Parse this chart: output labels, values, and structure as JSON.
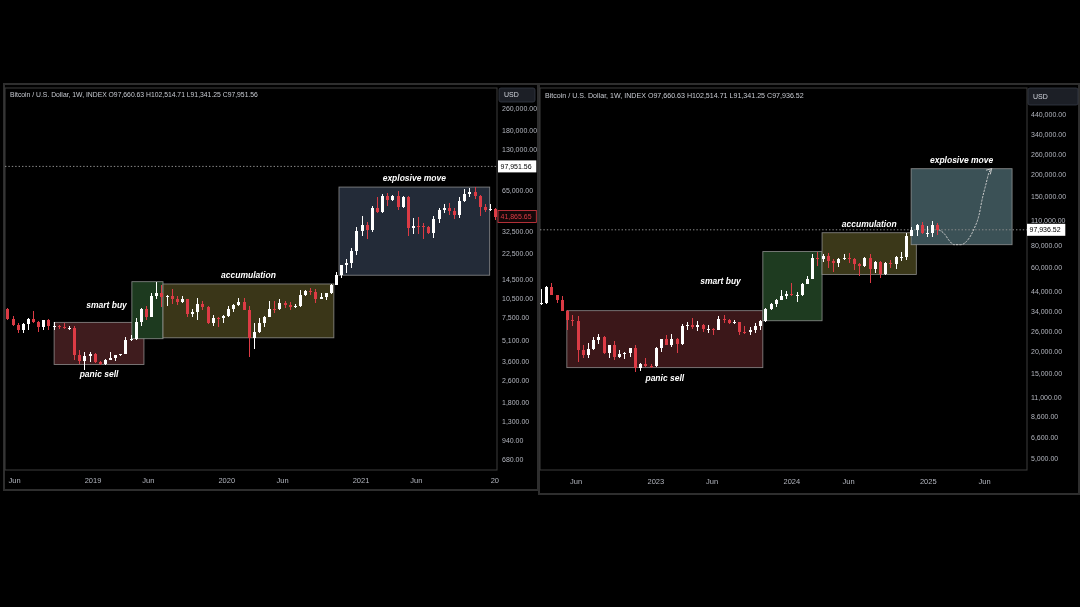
{
  "chart_data": [
    {
      "type": "candlestick",
      "title": "Bitcoin / U.S. Dollar, 1W, INDEX O97,660.63 H102,514.71 L91,341.25 C97,951.56",
      "ylabel": "USD",
      "log": true,
      "xlim": [
        "2018-05-06",
        "2022-01-07"
      ],
      "ylim": [
        570,
        370000
      ],
      "xticks": [
        {
          "value": "2018-06-01",
          "label": "Jun"
        },
        {
          "value": "2019-01-01",
          "label": "2019"
        },
        {
          "value": "2019-06-01",
          "label": "Jun"
        },
        {
          "value": "2020-01-01",
          "label": "2020"
        },
        {
          "value": "2020-06-01",
          "label": "Jun"
        },
        {
          "value": "2021-01-01",
          "label": "2021"
        },
        {
          "value": "2021-06-01",
          "label": "Jun"
        },
        {
          "value": "2022-01-01",
          "label": "20"
        }
      ],
      "yticks": [
        {
          "value": 260000,
          "label": "260,000.00"
        },
        {
          "value": 180000,
          "label": "180,000.00"
        },
        {
          "value": 130000,
          "label": "130,000.00"
        },
        {
          "value": 65000,
          "label": "65,000.00"
        },
        {
          "value": 32500,
          "label": "32,500.00"
        },
        {
          "value": 22500,
          "label": "22,500.00"
        },
        {
          "value": 14500,
          "label": "14,500.00"
        },
        {
          "value": 10500,
          "label": "10,500.00"
        },
        {
          "value": 7500,
          "label": "7,500.00"
        },
        {
          "value": 5100,
          "label": "5,100.00"
        },
        {
          "value": 3600,
          "label": "3,600.00"
        },
        {
          "value": 2600,
          "label": "2,600.00"
        },
        {
          "value": 1800,
          "label": "1,800.00"
        },
        {
          "value": 1300,
          "label": "1,300.00"
        },
        {
          "value": 940,
          "label": "940.00"
        },
        {
          "value": 680,
          "label": "680.00"
        }
      ],
      "x": [
        "2018-05-14",
        "2018-05-28",
        "2018-06-11",
        "2018-06-25",
        "2018-07-09",
        "2018-07-23",
        "2018-08-06",
        "2018-08-20",
        "2018-09-03",
        "2018-09-17",
        "2018-10-01",
        "2018-10-15",
        "2018-10-29",
        "2018-11-12",
        "2018-11-26",
        "2018-12-10",
        "2018-12-24",
        "2019-01-07",
        "2019-01-21",
        "2019-02-04",
        "2019-02-18",
        "2019-03-04",
        "2019-03-18",
        "2019-04-01",
        "2019-04-15",
        "2019-04-29",
        "2019-05-13",
        "2019-05-27",
        "2019-06-10",
        "2019-06-24",
        "2019-07-08",
        "2019-07-22",
        "2019-08-05",
        "2019-08-19",
        "2019-09-02",
        "2019-09-16",
        "2019-09-30",
        "2019-10-14",
        "2019-10-28",
        "2019-11-11",
        "2019-11-25",
        "2019-12-09",
        "2019-12-23",
        "2020-01-06",
        "2020-01-20",
        "2020-02-03",
        "2020-02-17",
        "2020-03-02",
        "2020-03-16",
        "2020-03-30",
        "2020-04-13",
        "2020-04-27",
        "2020-05-11",
        "2020-05-25",
        "2020-06-08",
        "2020-06-22",
        "2020-07-06",
        "2020-07-20",
        "2020-08-03",
        "2020-08-17",
        "2020-08-31",
        "2020-09-14",
        "2020-09-28",
        "2020-10-12",
        "2020-10-26",
        "2020-11-09",
        "2020-11-23",
        "2020-12-07",
        "2020-12-21",
        "2021-01-04",
        "2021-01-18",
        "2021-02-01",
        "2021-02-15",
        "2021-03-01",
        "2021-03-15",
        "2021-03-29",
        "2021-04-12",
        "2021-04-26",
        "2021-05-10",
        "2021-05-24",
        "2021-06-07",
        "2021-06-21",
        "2021-07-05",
        "2021-07-19",
        "2021-08-02",
        "2021-08-16",
        "2021-08-30",
        "2021-09-13",
        "2021-09-27",
        "2021-10-11",
        "2021-10-25",
        "2021-11-08",
        "2021-11-22",
        "2021-12-06",
        "2021-12-20",
        "2022-01-03"
      ],
      "ohlc": [
        [
          8680,
          8880,
          7270,
          7360
        ],
        [
          7360,
          7780,
          6650,
          6710
        ],
        [
          6710,
          6860,
          5780,
          6160
        ],
        [
          6160,
          6800,
          5830,
          6740
        ],
        [
          6740,
          7550,
          6080,
          7400
        ],
        [
          7400,
          8500,
          6900,
          7030
        ],
        [
          7030,
          7160,
          5880,
          6460
        ],
        [
          6460,
          7280,
          6120,
          7280
        ],
        [
          7280,
          7400,
          6110,
          6500
        ],
        [
          6500,
          6960,
          6150,
          6600
        ],
        [
          6600,
          6700,
          6200,
          6400
        ],
        [
          6400,
          6900,
          6330,
          6350
        ],
        [
          6350,
          6570,
          6280,
          6370
        ],
        [
          6370,
          6500,
          3650,
          4010
        ],
        [
          4010,
          4380,
          3450,
          3600
        ],
        [
          3600,
          4240,
          3130,
          3970
        ],
        [
          3970,
          4240,
          3560,
          4040
        ],
        [
          4040,
          4110,
          3480,
          3540
        ],
        [
          3540,
          3640,
          3370,
          3410
        ],
        [
          3410,
          3700,
          3380,
          3670
        ],
        [
          3670,
          4210,
          3670,
          3820
        ],
        [
          3820,
          4000,
          3620,
          4000
        ],
        [
          4000,
          4100,
          3940,
          4100
        ],
        [
          4100,
          5470,
          4100,
          5150
        ],
        [
          5150,
          5600,
          5050,
          5280
        ],
        [
          5280,
          7550,
          5250,
          7000
        ],
        [
          7000,
          8800,
          6600,
          8740
        ],
        [
          8740,
          9220,
          7260,
          7660
        ],
        [
          7660,
          11450,
          7660,
          10850
        ],
        [
          10850,
          13880,
          10300,
          11470
        ],
        [
          11470,
          13200,
          9080,
          10770
        ],
        [
          10770,
          11100,
          9150,
          10970
        ],
        [
          10970,
          12330,
          9470,
          10300
        ],
        [
          10300,
          10950,
          9340,
          9760
        ],
        [
          9760,
          10950,
          9610,
          10300
        ],
        [
          10300,
          10300,
          7630,
          8050
        ],
        [
          8050,
          8780,
          7630,
          8280
        ],
        [
          8280,
          10540,
          7300,
          9550
        ],
        [
          9550,
          10080,
          8530,
          9040
        ],
        [
          9040,
          9250,
          6790,
          6900
        ],
        [
          6900,
          7870,
          6530,
          7520
        ],
        [
          7520,
          7640,
          6430,
          7510
        ],
        [
          7510,
          7800,
          6870,
          7760
        ],
        [
          7760,
          9190,
          7670,
          8700
        ],
        [
          8700,
          9560,
          8290,
          9340
        ],
        [
          9340,
          10500,
          9160,
          9910
        ],
        [
          9910,
          10460,
          8540,
          8540
        ],
        [
          8540,
          9190,
          3860,
          5360
        ],
        [
          5360,
          6900,
          4440,
          5880
        ],
        [
          5880,
          7470,
          5860,
          6900
        ],
        [
          6900,
          7730,
          6470,
          7690
        ],
        [
          7690,
          10070,
          7690,
          8750
        ],
        [
          8750,
          9950,
          8100,
          8720
        ],
        [
          8720,
          10400,
          8640,
          9750
        ],
        [
          9750,
          10000,
          8910,
          9300
        ],
        [
          9300,
          9860,
          8600,
          9070
        ],
        [
          9070,
          9450,
          9040,
          9160
        ],
        [
          9160,
          12100,
          9140,
          11060
        ],
        [
          11060,
          12080,
          10980,
          11880
        ],
        [
          11880,
          12480,
          11150,
          11650
        ],
        [
          11650,
          12290,
          9750,
          10330
        ],
        [
          10330,
          11360,
          10330,
          10770
        ],
        [
          10770,
          11380,
          10210,
          11380
        ],
        [
          11380,
          13350,
          11200,
          13030
        ],
        [
          13030,
          16330,
          13030,
          15480
        ],
        [
          15480,
          18400,
          14670,
          18400
        ],
        [
          18400,
          20260,
          16200,
          19200
        ],
        [
          19200,
          24740,
          17600,
          23450
        ],
        [
          23450,
          34800,
          21800,
          32800
        ],
        [
          32800,
          42000,
          30300,
          36000
        ],
        [
          36000,
          38200,
          28800,
          33100
        ],
        [
          33100,
          49700,
          32300,
          48700
        ],
        [
          48700,
          58400,
          44900,
          45200
        ],
        [
          45200,
          61800,
          45000,
          59000
        ],
        [
          59000,
          62250,
          50300,
          55800
        ],
        [
          55800,
          60200,
          54800,
          59800
        ],
        [
          59800,
          64900,
          47000,
          49100
        ],
        [
          49100,
          59600,
          48800,
          58300
        ],
        [
          58300,
          59600,
          30000,
          34700
        ],
        [
          34700,
          40900,
          31100,
          35800
        ],
        [
          35800,
          41300,
          31300,
          35600
        ],
        [
          35600,
          37560,
          28800,
          35300
        ],
        [
          35300,
          35400,
          31100,
          31800
        ],
        [
          31800,
          42600,
          29300,
          39900
        ],
        [
          39900,
          48100,
          37500,
          47100
        ],
        [
          47100,
          51480,
          44300,
          48800
        ],
        [
          48800,
          52900,
          42900,
          46000
        ],
        [
          46000,
          48800,
          40000,
          43200
        ],
        [
          43200,
          57920,
          40800,
          54900
        ],
        [
          54900,
          67000,
          54400,
          61000
        ],
        [
          61000,
          68000,
          58100,
          63300
        ],
        [
          63300,
          69000,
          56000,
          59700
        ],
        [
          59700,
          59800,
          42000,
          49400
        ],
        [
          49400,
          51900,
          45600,
          46700
        ],
        [
          46700,
          52100,
          45700,
          47300
        ],
        [
          47300,
          47600,
          39600,
          41866
        ]
      ],
      "colors": [
        "#dc3b45",
        "#dc3b45",
        "#dc3b45",
        "#ffffff",
        "#ffffff",
        "#dc3b45",
        "#dc3b45",
        "#ffffff",
        "#dc3b45",
        "#ffffff",
        "#dc3b45",
        "#dc3b45",
        "#ffffff",
        "#dc3b45",
        "#dc3b45",
        "#ffffff",
        "#ffffff",
        "#dc3b45",
        "#dc3b45",
        "#ffffff",
        "#ffffff",
        "#ffffff",
        "#ffffff",
        "#ffffff",
        "#ffffff",
        "#ffffff",
        "#ffffff",
        "#dc3b45",
        "#ffffff",
        "#ffffff",
        "#dc3b45",
        "#ffffff",
        "#dc3b45",
        "#dc3b45",
        "#ffffff",
        "#dc3b45",
        "#ffffff",
        "#ffffff",
        "#dc3b45",
        "#dc3b45",
        "#ffffff",
        "#dc3b45",
        "#ffffff",
        "#ffffff",
        "#ffffff",
        "#ffffff",
        "#dc3b45",
        "#dc3b45",
        "#ffffff",
        "#ffffff",
        "#ffffff",
        "#ffffff",
        "#dc3b45",
        "#ffffff",
        "#dc3b45",
        "#dc3b45",
        "#ffffff",
        "#ffffff",
        "#ffffff",
        "#dc3b45",
        "#dc3b45",
        "#ffffff",
        "#ffffff",
        "#ffffff",
        "#ffffff",
        "#ffffff",
        "#ffffff",
        "#ffffff",
        "#ffffff",
        "#ffffff",
        "#dc3b45",
        "#ffffff",
        "#dc3b45",
        "#ffffff",
        "#dc3b45",
        "#ffffff",
        "#dc3b45",
        "#ffffff",
        "#dc3b45",
        "#ffffff",
        "#dc3b45",
        "#dc3b45",
        "#dc3b45",
        "#ffffff",
        "#ffffff",
        "#ffffff",
        "#dc3b45",
        "#dc3b45",
        "#ffffff",
        "#ffffff",
        "#ffffff",
        "#dc3b45",
        "#dc3b45",
        "#dc3b45",
        "#ffffff",
        "#dc3b45"
      ],
      "ref_lines": [
        {
          "axis": "y",
          "value": 97951.56,
          "color": "#8c8c8c",
          "line_style": "dotted"
        }
      ],
      "bands": [
        {
          "axis": "x",
          "from": "2018-09-17",
          "to": "2019-05-20",
          "label": "panic sell",
          "color": "#3f1c1e"
        },
        {
          "axis": "x",
          "from": "2019-04-17",
          "to": "2019-07-11",
          "label": "smart buy",
          "color": "#1d3a1f"
        },
        {
          "axis": "x",
          "from": "2019-07-11",
          "to": "2020-10-19",
          "label": "accumulation",
          "color": "#3a3618"
        },
        {
          "axis": "x",
          "from": "2020-11-02",
          "to": "2021-12-18",
          "label": "explosive move",
          "color": "#232b38"
        }
      ],
      "annotations": [
        {
          "text": "97,951.56",
          "y": 97951.56
        },
        {
          "text": "41,865.65",
          "y": 41865.65
        }
      ]
    },
    {
      "type": "candlestick",
      "title": "Bitcoin / U.S. Dollar, 1W, INDEX O97,660.63 H102,514.71 L91,341.25 C97,936.52",
      "ylabel": "USD",
      "log": true,
      "xlim": [
        "2022-02-24",
        "2025-09-23"
      ],
      "ylim": [
        4300,
        620000
      ],
      "xticks": [
        {
          "value": "2022-06-01",
          "label": "Jun"
        },
        {
          "value": "2023-01-01",
          "label": "2023"
        },
        {
          "value": "2023-06-01",
          "label": "Jun"
        },
        {
          "value": "2024-01-01",
          "label": "2024"
        },
        {
          "value": "2024-06-01",
          "label": "Jun"
        },
        {
          "value": "2025-01-01",
          "label": "2025"
        },
        {
          "value": "2025-06-01",
          "label": "Jun"
        }
      ],
      "yticks": [
        {
          "value": 440000,
          "label": "440,000.00"
        },
        {
          "value": 340000,
          "label": "340,000.00"
        },
        {
          "value": 260000,
          "label": "260,000.00"
        },
        {
          "value": 200000,
          "label": "200,000.00"
        },
        {
          "value": 150000,
          "label": "150,000.00"
        },
        {
          "value": 110000,
          "label": "110,000.00"
        },
        {
          "value": 80000,
          "label": "80,000.00"
        },
        {
          "value": 60000,
          "label": "60,000.00"
        },
        {
          "value": 44000,
          "label": "44,000.00"
        },
        {
          "value": 34000,
          "label": "34,000.00"
        },
        {
          "value": 26000,
          "label": "26,000.00"
        },
        {
          "value": 20000,
          "label": "20,000.00"
        },
        {
          "value": 15000,
          "label": "15,000.00"
        },
        {
          "value": 11000,
          "label": "11,000.00"
        },
        {
          "value": 8600,
          "label": "8,600.00"
        },
        {
          "value": 6600,
          "label": "6,600.00"
        },
        {
          "value": 5000,
          "label": "5,000.00"
        }
      ],
      "x": [
        "2022-02-28",
        "2022-03-14",
        "2022-03-28",
        "2022-04-11",
        "2022-04-25",
        "2022-05-09",
        "2022-05-23",
        "2022-06-06",
        "2022-06-20",
        "2022-07-04",
        "2022-07-18",
        "2022-08-01",
        "2022-08-15",
        "2022-08-29",
        "2022-09-12",
        "2022-09-26",
        "2022-10-10",
        "2022-10-24",
        "2022-11-07",
        "2022-11-21",
        "2022-12-05",
        "2022-12-19",
        "2023-01-02",
        "2023-01-16",
        "2023-01-30",
        "2023-02-13",
        "2023-02-27",
        "2023-03-13",
        "2023-03-27",
        "2023-04-10",
        "2023-04-24",
        "2023-05-08",
        "2023-05-22",
        "2023-06-05",
        "2023-06-19",
        "2023-07-03",
        "2023-07-17",
        "2023-07-31",
        "2023-08-14",
        "2023-08-28",
        "2023-09-11",
        "2023-09-25",
        "2023-10-09",
        "2023-10-23",
        "2023-11-06",
        "2023-11-20",
        "2023-12-04",
        "2023-12-18",
        "2024-01-01",
        "2024-01-15",
        "2024-01-29",
        "2024-02-12",
        "2024-02-26",
        "2024-03-11",
        "2024-03-25",
        "2024-04-08",
        "2024-04-22",
        "2024-05-06",
        "2024-05-20",
        "2024-06-03",
        "2024-06-17",
        "2024-07-01",
        "2024-07-15",
        "2024-07-29",
        "2024-08-12",
        "2024-08-26",
        "2024-09-09",
        "2024-09-23",
        "2024-10-07",
        "2024-10-21",
        "2024-11-04",
        "2024-11-18",
        "2024-12-02",
        "2024-12-16",
        "2024-12-30",
        "2025-01-13",
        "2025-01-27"
      ],
      "ohlc": [
        [
          37700,
          45400,
          37200,
          37800
        ],
        [
          37800,
          47000,
          37600,
          46800
        ],
        [
          46800,
          48900,
          42200,
          42200
        ],
        [
          42200,
          42200,
          37800,
          39500
        ],
        [
          39500,
          41280,
          34100,
          34100
        ],
        [
          34100,
          34200,
          26700,
          30300
        ],
        [
          30300,
          32400,
          28000,
          29900
        ],
        [
          29900,
          31700,
          17600,
          20600
        ],
        [
          20600,
          21900,
          18470,
          19300
        ],
        [
          19300,
          22500,
          18470,
          20800
        ],
        [
          20800,
          24300,
          20700,
          23300
        ],
        [
          23300,
          25390,
          22190,
          24300
        ],
        [
          24300,
          24500,
          19500,
          19600
        ],
        [
          19600,
          21800,
          18500,
          21800
        ],
        [
          21800,
          23000,
          17990,
          18800
        ],
        [
          18800,
          20500,
          18500,
          19400
        ],
        [
          19400,
          19900,
          18200,
          19600
        ],
        [
          19600,
          20900,
          18760,
          20900
        ],
        [
          20900,
          21840,
          15450,
          16300
        ],
        [
          16300,
          17400,
          15500,
          17100
        ],
        [
          17100,
          18400,
          16600,
          16700
        ],
        [
          16700,
          17000,
          16300,
          16600
        ],
        [
          16600,
          21000,
          16500,
          20900
        ],
        [
          20900,
          23700,
          20000,
          23700
        ],
        [
          23700,
          24770,
          21800,
          21800
        ],
        [
          21800,
          25250,
          21400,
          23500
        ],
        [
          23500,
          23900,
          19600,
          22100
        ],
        [
          22100,
          28900,
          21900,
          27900
        ],
        [
          27900,
          29570,
          26500,
          28300
        ],
        [
          28300,
          31000,
          27100,
          27600
        ],
        [
          27600,
          30000,
          26410,
          28400
        ],
        [
          28400,
          28600,
          25800,
          26800
        ],
        [
          26800,
          28400,
          25650,
          27100
        ],
        [
          27100,
          27400,
          24800,
          26500
        ],
        [
          26500,
          31980,
          26500,
          30600
        ],
        [
          30600,
          32130,
          29000,
          30300
        ],
        [
          30300,
          30400,
          29000,
          29300
        ],
        [
          29300,
          30200,
          28700,
          29400
        ],
        [
          29400,
          29400,
          24880,
          26000
        ],
        [
          26000,
          28100,
          25400,
          25800
        ],
        [
          25800,
          27500,
          24900,
          26600
        ],
        [
          26600,
          29160,
          25450,
          27900
        ],
        [
          27900,
          30400,
          26600,
          30000
        ],
        [
          30000,
          35300,
          29900,
          35000
        ],
        [
          35000,
          38000,
          34600,
          37400
        ],
        [
          37400,
          39800,
          35700,
          39500
        ],
        [
          39500,
          44700,
          39500,
          41400
        ],
        [
          41400,
          44300,
          39620,
          42300
        ],
        [
          42300,
          49000,
          41500,
          41700
        ],
        [
          41700,
          43600,
          38500,
          42100
        ],
        [
          42100,
          48500,
          41900,
          48300
        ],
        [
          48300,
          54030,
          48300,
          51700
        ],
        [
          51700,
          71370,
          51700,
          68300
        ],
        [
          68300,
          73800,
          60800,
          67200
        ],
        [
          67200,
          71800,
          64500,
          69400
        ],
        [
          69400,
          72800,
          59600,
          64900
        ],
        [
          64900,
          67200,
          56500,
          64000
        ],
        [
          64000,
          67400,
          60200,
          67000
        ],
        [
          67000,
          71900,
          66600,
          67800
        ],
        [
          67800,
          72000,
          63830,
          66700
        ],
        [
          66700,
          67000,
          58400,
          62700
        ],
        [
          62700,
          63800,
          53400,
          60800
        ],
        [
          60800,
          68400,
          60700,
          68200
        ],
        [
          68200,
          71270,
          49000,
          58700
        ],
        [
          58700,
          65000,
          56100,
          64200
        ],
        [
          64200,
          64500,
          52600,
          54800
        ],
        [
          54800,
          64100,
          54600,
          63300
        ],
        [
          63300,
          66500,
          59800,
          62800
        ],
        [
          62800,
          69400,
          58900,
          68400
        ],
        [
          68400,
          73600,
          65500,
          68800
        ],
        [
          68800,
          94290,
          65840,
          89800
        ],
        [
          89800,
          101570,
          89800,
          97200
        ],
        [
          97200,
          105000,
          90500,
          104300
        ],
        [
          104300,
          108300,
          92200,
          93700
        ],
        [
          93700,
          102700,
          89670,
          94500
        ],
        [
          94500,
          109400,
          89300,
          104700
        ],
        [
          104700,
          106400,
          91300,
          97937
        ]
      ],
      "colors": [
        "#ffffff",
        "#ffffff",
        "#dc3b45",
        "#dc3b45",
        "#dc3b45",
        "#dc3b45",
        "#dc3b45",
        "#dc3b45",
        "#dc3b45",
        "#ffffff",
        "#ffffff",
        "#ffffff",
        "#dc3b45",
        "#ffffff",
        "#dc3b45",
        "#ffffff",
        "#ffffff",
        "#ffffff",
        "#dc3b45",
        "#ffffff",
        "#dc3b45",
        "#dc3b45",
        "#ffffff",
        "#ffffff",
        "#dc3b45",
        "#ffffff",
        "#dc3b45",
        "#ffffff",
        "#ffffff",
        "#dc3b45",
        "#ffffff",
        "#dc3b45",
        "#ffffff",
        "#dc3b45",
        "#ffffff",
        "#dc3b45",
        "#dc3b45",
        "#ffffff",
        "#dc3b45",
        "#dc3b45",
        "#ffffff",
        "#ffffff",
        "#ffffff",
        "#ffffff",
        "#ffffff",
        "#ffffff",
        "#ffffff",
        "#ffffff",
        "#dc3b45",
        "#ffffff",
        "#ffffff",
        "#ffffff",
        "#ffffff",
        "#dc3b45",
        "#ffffff",
        "#dc3b45",
        "#dc3b45",
        "#ffffff",
        "#ffffff",
        "#dc3b45",
        "#dc3b45",
        "#dc3b45",
        "#ffffff",
        "#dc3b45",
        "#ffffff",
        "#dc3b45",
        "#ffffff",
        "#dc3b45",
        "#ffffff",
        "#ffffff",
        "#ffffff",
        "#ffffff",
        "#ffffff",
        "#dc3b45",
        "#ffffff",
        "#ffffff",
        "#dc3b45"
      ],
      "series": [
        {
          "type": "line",
          "x": [
            "2025-01-30",
            "2025-02-13",
            "2025-02-26",
            "2025-03-11",
            "2025-03-29",
            "2025-04-16",
            "2025-05-04",
            "2025-05-17",
            "2025-05-26",
            "2025-06-04",
            "2025-06-13",
            "2025-06-20"
          ],
          "values": [
            97900,
            93100,
            85300,
            80700,
            80700,
            85300,
            99300,
            118000,
            146800,
            174600,
            206000,
            217000
          ],
          "color": "#cfcfcf",
          "line_style": "dotted"
        }
      ],
      "ref_lines": [
        {
          "axis": "y",
          "value": 97936.52,
          "color": "#8c8c8c",
          "line_style": "dotted"
        }
      ],
      "bands": [
        {
          "axis": "x",
          "from": "2022-05-07",
          "to": "2023-10-15",
          "label": "panic sell",
          "color": "#3b1719"
        },
        {
          "axis": "x",
          "from": "2023-10-15",
          "to": "2024-03-22",
          "label": "smart buy",
          "color": "#1e3b20"
        },
        {
          "axis": "x",
          "from": "2024-03-22",
          "to": "2024-11-30",
          "label": "accumulation",
          "color": "#3b3819"
        },
        {
          "axis": "x",
          "from": "2024-11-16",
          "to": "2025-08-14",
          "label": "explosive move",
          "color": "#3b5156"
        }
      ],
      "annotations": [
        {
          "text": "97,936.52",
          "y": 97936.52
        }
      ]
    }
  ]
}
